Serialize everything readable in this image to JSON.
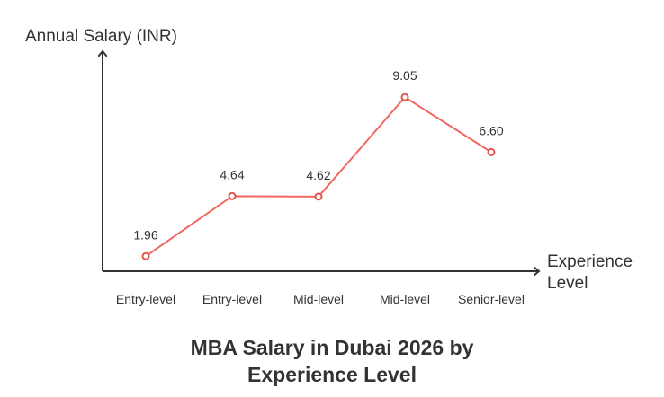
{
  "chart_data": {
    "type": "line",
    "title": "MBA Salary in Dubai 2026 by Experience Level",
    "title_lines": [
      "MBA Salary in Dubai 2026 by",
      "Experience Level"
    ],
    "xlabel": "Experience Level",
    "xlabel_lines": [
      "Experience",
      "Level"
    ],
    "ylabel": "Annual Salary (INR)",
    "categories": [
      "Entry-level",
      "Entry-level",
      "Mid-level",
      "Mid-level",
      "Senior-level"
    ],
    "values": [
      1.96,
      4.64,
      4.62,
      9.05,
      6.6
    ],
    "data_labels": [
      "1.96",
      "4.64",
      "4.62",
      "9.05",
      "6.60"
    ],
    "ylim": [
      0,
      10
    ],
    "grid": false,
    "legend": "none",
    "colors": {
      "line": "#f2675f",
      "axis": "#333333",
      "text": "#333333"
    }
  }
}
